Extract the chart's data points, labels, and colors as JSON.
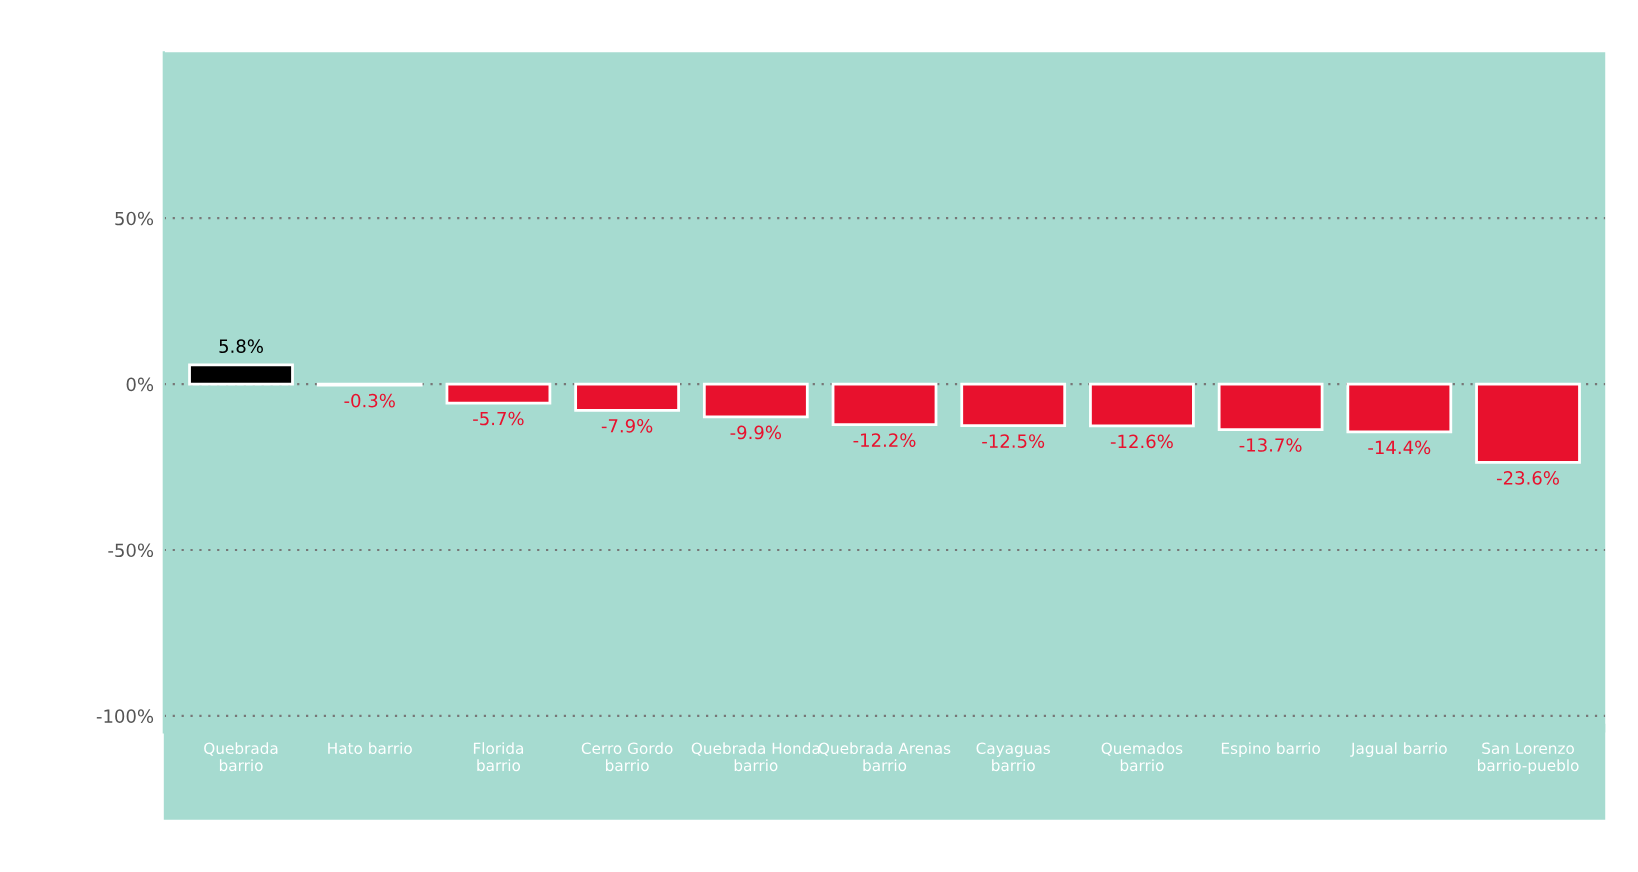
{
  "chart_data": {
    "type": "bar",
    "categories": [
      "Quebrada barrio",
      "Hato barrio",
      "Florida barrio",
      "Cerro Gordo barrio",
      "Quebrada Honda barrio",
      "Quebrada Arenas barrio",
      "Cayaguas barrio",
      "Quemados barrio",
      "Espino barrio",
      "Jagual barrio",
      "San Lorenzo barrio-pueblo"
    ],
    "values": [
      5.8,
      -0.3,
      -5.7,
      -7.9,
      -9.9,
      -12.2,
      -12.5,
      -12.6,
      -13.7,
      -14.4,
      -23.6
    ],
    "colors": [
      "#000000",
      "#e8112d",
      "#e8112d",
      "#e8112d",
      "#e8112d",
      "#e8112d",
      "#e8112d",
      "#e8112d",
      "#e8112d",
      "#e8112d",
      "#e8112d"
    ],
    "value_labels": [
      "5.8%",
      "-0.3%",
      "-5.7%",
      "-7.9%",
      "-9.9%",
      "-12.2%",
      "-12.5%",
      "-12.6%",
      "-13.7%",
      "-14.4%",
      "-23.6%"
    ],
    "ylim": [
      -105,
      100
    ],
    "yticks": [
      {
        "value": -100,
        "label": "-100%"
      },
      {
        "value": -50,
        "label": "-50%"
      },
      {
        "value": 0,
        "label": "0%"
      },
      {
        "value": 50,
        "label": "50%"
      }
    ],
    "grid": "y",
    "legend": false
  }
}
